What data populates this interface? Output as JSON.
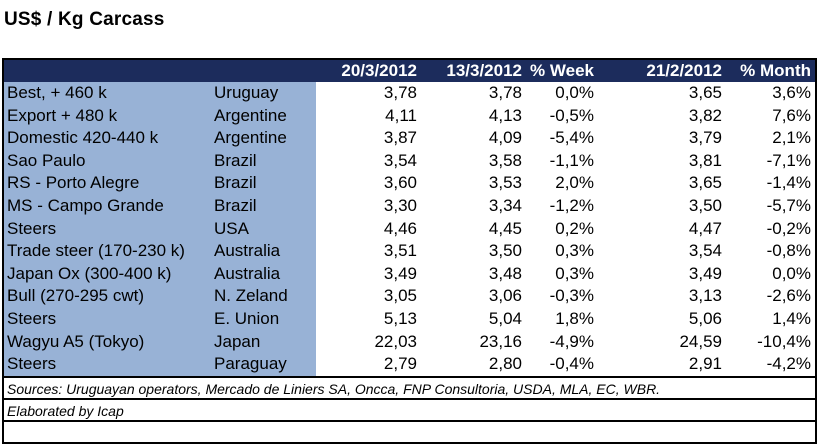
{
  "title": "US$ / Kg Carcass",
  "headers": [
    "20/3/2012",
    "13/3/2012",
    "% Week",
    "21/2/2012",
    "% Month"
  ],
  "rows": [
    {
      "name": "Best, + 460 k",
      "country": "Uruguay",
      "v1": "3,78",
      "v2": "3,78",
      "week": "0,0%",
      "v3": "3,65",
      "month": "3,6%"
    },
    {
      "name": "Export + 480 k",
      "country": "Argentine",
      "v1": "4,11",
      "v2": "4,13",
      "week": "-0,5%",
      "v3": "3,82",
      "month": "7,6%"
    },
    {
      "name": "Domestic 420-440 k",
      "country": "Argentine",
      "v1": "3,87",
      "v2": "4,09",
      "week": "-5,4%",
      "v3": "3,79",
      "month": "2,1%"
    },
    {
      "name": "Sao Paulo",
      "country": "Brazil",
      "v1": "3,54",
      "v2": "3,58",
      "week": "-1,1%",
      "v3": "3,81",
      "month": "-7,1%"
    },
    {
      "name": "RS - Porto Alegre",
      "country": "Brazil",
      "v1": "3,60",
      "v2": "3,53",
      "week": "2,0%",
      "v3": "3,65",
      "month": "-1,4%"
    },
    {
      "name": "MS - Campo Grande",
      "country": "Brazil",
      "v1": "3,30",
      "v2": "3,34",
      "week": "-1,2%",
      "v3": "3,50",
      "month": "-5,7%"
    },
    {
      "name": "Steers",
      "country": "USA",
      "v1": "4,46",
      "v2": "4,45",
      "week": "0,2%",
      "v3": "4,47",
      "month": "-0,2%"
    },
    {
      "name": "Trade steer (170-230 k)",
      "country": "Australia",
      "v1": "3,51",
      "v2": "3,50",
      "week": "0,3%",
      "v3": "3,54",
      "month": "-0,8%"
    },
    {
      "name": "Japan Ox (300-400 k)",
      "country": "Australia",
      "v1": "3,49",
      "v2": "3,48",
      "week": "0,3%",
      "v3": "3,49",
      "month": "0,0%"
    },
    {
      "name": "Bull (270-295 cwt)",
      "country": "N. Zeland",
      "v1": "3,05",
      "v2": "3,06",
      "week": "-0,3%",
      "v3": "3,13",
      "month": "-2,6%"
    },
    {
      "name": "Steers",
      "country": "E. Union",
      "v1": "5,13",
      "v2": "5,04",
      "week": "1,8%",
      "v3": "5,06",
      "month": "1,4%"
    },
    {
      "name": "Wagyu A5 (Tokyo)",
      "country": "Japan",
      "v1": "22,03",
      "v2": "23,16",
      "week": "-4,9%",
      "v3": "24,59",
      "month": "-10,4%"
    },
    {
      "name": "Steers",
      "country": "Paraguay",
      "v1": "2,79",
      "v2": "2,80",
      "week": "-0,4%",
      "v3": "2,91",
      "month": "-4,2%"
    }
  ],
  "sources": "Sources: Uruguayan operators, Mercado de Liniers SA, Oncca, FNP Consultoria, USDA, MLA, EC, WBR.",
  "elaborated": "Elaborated by Icap",
  "colors": {
    "header_bg": "#1c2c5c",
    "label_bg": "#98b2d6"
  }
}
